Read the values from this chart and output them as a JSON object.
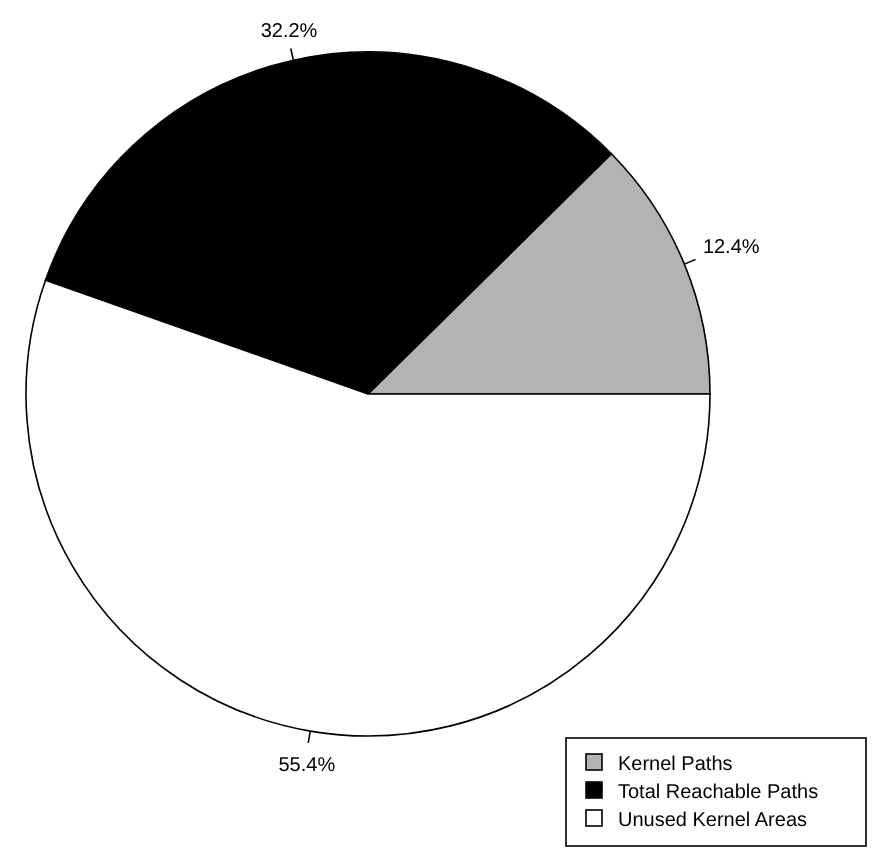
{
  "chart_data": {
    "type": "pie",
    "categories": [
      "Kernel Paths",
      "Total Reachable Paths",
      "Unused Kernel Areas"
    ],
    "values": [
      12.4,
      32.2,
      55.4
    ],
    "value_labels": [
      "12.4%",
      "32.2%",
      "55.4%"
    ],
    "colors": [
      "#b3b3b3",
      "#000000",
      "#ffffff"
    ],
    "legend": "bottom right"
  }
}
